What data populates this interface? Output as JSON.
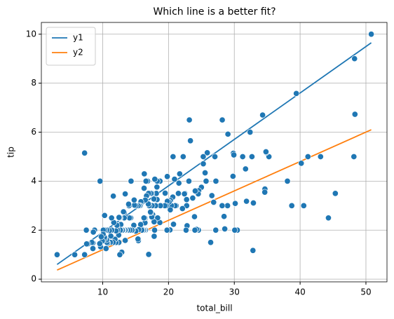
{
  "chart_data": {
    "type": "scatter",
    "title": "Which line is a better fit?",
    "xlabel": "total_bill",
    "ylabel": "tip",
    "color": "#1f77b4",
    "grid": true,
    "legend": "upper left",
    "xlim": [
      0.68,
      53.2
    ],
    "ylim": [
      -0.11,
      10.48
    ],
    "xticks": [
      10,
      20,
      30,
      40,
      50
    ],
    "yticks": [
      0,
      2,
      4,
      6,
      8,
      10
    ],
    "x": [
      50.81,
      48.27,
      48.17,
      48.33,
      39.42,
      44.3,
      45.35,
      43.11,
      41.19,
      40.55,
      40.17,
      38.73,
      38.07,
      35.26,
      34.83,
      34.81,
      34.65,
      34.63,
      34.3,
      32.83,
      32.68,
      32.9,
      32.4,
      31.85,
      31.71,
      31.27,
      30.46,
      30.14,
      30.06,
      29.85,
      29.8,
      29.03,
      29.93,
      28.97,
      28.55,
      28.44,
      28.17,
      28.15,
      27.18,
      27.05,
      27.28,
      27.2,
      26.88,
      26.59,
      26.41,
      26.86,
      25.89,
      25.71,
      25.56,
      25.29,
      25.28,
      25.0,
      24.59,
      24.55,
      24.52,
      24.27,
      24.06,
      24.01,
      23.95,
      23.68,
      23.33,
      23.17,
      23.1,
      22.82,
      22.76,
      22.75,
      22.67,
      22.49,
      22.42,
      22.23,
      22.12,
      21.7,
      21.58,
      21.5,
      21.16,
      21.01,
      20.92,
      20.76,
      20.69,
      20.65,
      20.45,
      20.29,
      20.27,
      20.23,
      20.08,
      19.82,
      19.81,
      19.77,
      19.65,
      19.49,
      19.44,
      18.78,
      18.71,
      18.69,
      18.35,
      18.29,
      18.28,
      18.26,
      18.24,
      18.15,
      18.04,
      17.92,
      17.89,
      17.82,
      17.81,
      17.78,
      17.59,
      17.51,
      17.47,
      17.46,
      17.31,
      17.29,
      17.26,
      17.07,
      16.99,
      16.97,
      16.93,
      16.82,
      16.66,
      16.58,
      16.49,
      16.47,
      16.45,
      16.43,
      16.4,
      16.32,
      16.31,
      16.29,
      16.27,
      16.21,
      16.0,
      15.98,
      15.95,
      15.81,
      15.77,
      15.69,
      15.53,
      15.48,
      15.42,
      15.38,
      15.36,
      15.06,
      15.04,
      14.83,
      14.78,
      14.73,
      14.52,
      14.48,
      14.47,
      14.31,
      14.26,
      14.15,
      14.07,
      14.0,
      13.94,
      13.81,
      13.51,
      13.42,
      13.42,
      13.39,
      13.37,
      13.28,
      13.27,
      13.16,
      13.13,
      13.03,
      13.0,
      12.9,
      12.76,
      12.74,
      12.69,
      12.66,
      12.6,
      12.54,
      12.48,
      12.46,
      12.43,
      12.26,
      12.16,
      12.03,
      12.02,
      11.87,
      11.69,
      11.61,
      11.59,
      11.38,
      11.35,
      11.24,
      11.17,
      11.02,
      10.77,
      10.65,
      10.63,
      10.59,
      10.51,
      10.34,
      10.33,
      10.29,
      10.27,
      10.09,
      10.07,
      9.94,
      9.78,
      9.68,
      9.6,
      9.55,
      8.77,
      8.58,
      8.52,
      8.51,
      8.35,
      7.74,
      7.56,
      7.51,
      7.25,
      7.25,
      5.75,
      3.07
    ],
    "values": [
      10,
      9,
      5,
      6.73,
      7.58,
      2.5,
      3.5,
      5,
      5,
      3,
      4.73,
      3,
      4,
      5,
      5.17,
      5.2,
      3.68,
      3.55,
      6.7,
      1.17,
      5,
      3.11,
      6,
      3.18,
      4.5,
      5,
      2,
      3.09,
      2,
      5.14,
      4.2,
      5.92,
      5.07,
      3,
      2.05,
      2.56,
      6.5,
      3,
      2,
      5,
      4,
      4,
      3.12,
      3.41,
      1.5,
      3.14,
      5.16,
      4,
      4.34,
      4.71,
      5,
      3.75,
      3.61,
      2,
      3.48,
      2.03,
      3.6,
      2,
      2.55,
      3.31,
      5.65,
      6.5,
      4,
      2.18,
      3,
      3.25,
      2,
      3.5,
      3.48,
      5,
      2.88,
      4.3,
      3.92,
      3.5,
      3,
      3,
      4.08,
      2.24,
      5,
      3.35,
      3,
      3.21,
      2.83,
      2.01,
      3.15,
      3.18,
      4.19,
      2,
      3,
      3.51,
      3,
      3,
      4,
      2.31,
      2.5,
      3.76,
      4,
      3.25,
      3.76,
      3.5,
      3,
      4.08,
      2,
      1.75,
      2.34,
      3.27,
      2.64,
      3,
      3.5,
      2.54,
      3.5,
      2.71,
      2.74,
      3,
      1.01,
      3.5,
      3.07,
      4,
      3.4,
      4,
      2,
      3.23,
      2.47,
      2.3,
      2.5,
      4.3,
      2,
      3.71,
      2.5,
      2,
      2,
      2.03,
      2,
      3.16,
      2.23,
      3,
      3,
      2.02,
      1.57,
      3,
      1.64,
      3,
      1.96,
      3.02,
      3.23,
      2.2,
      2,
      2,
      2,
      4,
      2.5,
      2,
      2.5,
      3,
      3.06,
      2,
      2,
      3.48,
      1.58,
      2.61,
      2,
      2.72,
      2.5,
      2.75,
      2,
      2,
      2,
      1.1,
      2.23,
      2.01,
      2,
      2.5,
      1,
      2.5,
      2.52,
      1.5,
      1.8,
      2,
      2.2,
      1.5,
      1.97,
      1.63,
      2.31,
      3.39,
      1.5,
      2,
      2.5,
      1.76,
      1.5,
      1.98,
      1.47,
      1.5,
      2,
      1.61,
      1.25,
      1.66,
      2,
      2.6,
      1.71,
      2,
      1.83,
      1.56,
      1.73,
      1.32,
      4,
      1.45,
      2,
      1.92,
      1.48,
      1.25,
      1.5,
      1.44,
      1.44,
      2,
      5.15,
      1,
      1,
      1
    ],
    "series": [
      {
        "name": "y1",
        "color": "#1f77b4",
        "x": [
          3.07,
          50.81
        ],
        "values": [
          0.6,
          9.65
        ]
      },
      {
        "name": "y2",
        "color": "#ff7f0e",
        "x": [
          3.07,
          50.81
        ],
        "values": [
          0.37,
          6.1
        ]
      }
    ]
  }
}
